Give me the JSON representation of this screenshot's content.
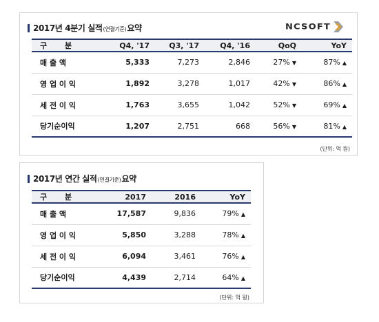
{
  "quarterly": {
    "title_main": "2017년 4분기 실적",
    "title_note": "(연결기준)",
    "title_suffix": "요약",
    "logo_text": "NCSOFT",
    "columns": [
      "구 분",
      "Q4, '17",
      "Q3, '17",
      "Q4, '16",
      "QoQ",
      "YoY"
    ],
    "rows": [
      {
        "label": "매 출 액",
        "q4_17": "5,333",
        "q3_17": "7,273",
        "q4_16": "2,846",
        "qoq": "27%",
        "qoq_dir": "▼",
        "yoy": "87%",
        "yoy_dir": "▲"
      },
      {
        "label": "영 업 이 익",
        "q4_17": "1,892",
        "q3_17": "3,278",
        "q4_16": "1,017",
        "qoq": "42%",
        "qoq_dir": "▼",
        "yoy": "86%",
        "yoy_dir": "▲"
      },
      {
        "label": "세 전 이 익",
        "q4_17": "1,763",
        "q3_17": "3,655",
        "q4_16": "1,042",
        "qoq": "52%",
        "qoq_dir": "▼",
        "yoy": "69%",
        "yoy_dir": "▲"
      },
      {
        "label": "당기순이익",
        "q4_17": "1,207",
        "q3_17": "2,751",
        "q4_16": "668",
        "qoq": "56%",
        "qoq_dir": "▼",
        "yoy": "81%",
        "yoy_dir": "▲"
      }
    ],
    "unit": "(단위: 억 원)"
  },
  "annual": {
    "title_main": "2017년 연간 실적",
    "title_note": "(연결기준)",
    "title_suffix": "요약",
    "columns": [
      "구 분",
      "2017",
      "2016",
      "YoY"
    ],
    "rows": [
      {
        "label": "매 출 액",
        "y2017": "17,587",
        "y2016": "9,836",
        "yoy": "79%",
        "yoy_dir": "▲"
      },
      {
        "label": "영 업 이 익",
        "y2017": "5,850",
        "y2016": "3,288",
        "yoy": "78%",
        "yoy_dir": "▲"
      },
      {
        "label": "세 전 이 익",
        "y2017": "6,094",
        "y2016": "3,461",
        "yoy": "76%",
        "yoy_dir": "▲"
      },
      {
        "label": "당기순이익",
        "y2017": "4,439",
        "y2016": "2,714",
        "yoy": "64%",
        "yoy_dir": "▲"
      }
    ],
    "unit": "(단위: 억 원)"
  },
  "colors": {
    "accent": "#25396f",
    "header_bg": "#eff0f4",
    "logo": "#2a2a2a"
  },
  "icons": {
    "logo_mark": "ncsoft-chevron-logo-icon"
  }
}
